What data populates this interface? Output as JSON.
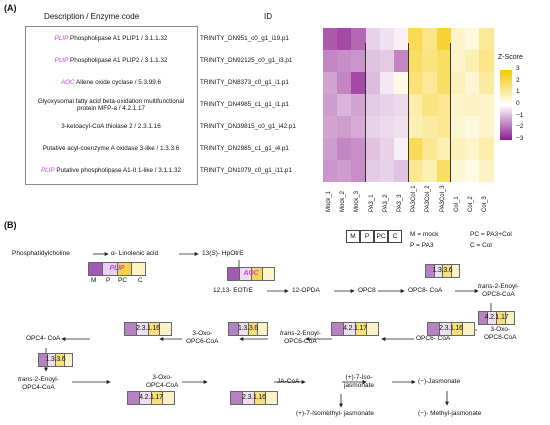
{
  "panel_a": {
    "label": "(A)",
    "desc_header": "Description / Enzyme code",
    "id_header": "ID",
    "rows": [
      {
        "tag": "PLIP",
        "desc": "Phospholipase A1 PLIP1 / 3.1.1.32",
        "id": "TRINITY_DN951_c0_g1_i19.p1",
        "values": [
          -2.2,
          -2.4,
          -2.0,
          -0.6,
          -0.4,
          -0.2,
          2.0,
          1.4,
          2.4,
          0.6,
          0.4,
          1.2
        ]
      },
      {
        "tag": "PLIP",
        "desc": "Phospholipase A1 PLIP2 / 3.1.1.32",
        "id": "TRINITY_DN92125_c0_g1_i3.p1",
        "values": [
          -1.6,
          -1.5,
          -1.4,
          -0.8,
          -0.7,
          -1.6,
          1.8,
          1.5,
          1.8,
          0.6,
          0.9,
          1.4
        ]
      },
      {
        "tag": "AOC",
        "desc": "Allene oxide cyclase / 5.3.99.6",
        "id": "TRINITY_DN8373_c0_g1_i1.p1",
        "values": [
          -1.2,
          -1.6,
          -2.4,
          -0.9,
          -0.3,
          0.3,
          1.6,
          1.2,
          1.8,
          0.8,
          0.5,
          1.1
        ]
      },
      {
        "tag": "",
        "desc": "Glyoxysomal fatty acid beta-oxidation multifunctional protein MFP-a / 4.2.1.17",
        "id": "TRINITY_DN4985_c1_g1_i1.p1",
        "values": [
          -1.3,
          -1.0,
          -1.2,
          -0.7,
          -0.6,
          -0.5,
          1.0,
          1.5,
          1.3,
          0.6,
          0.7,
          0.6
        ]
      },
      {
        "tag": "",
        "desc": "3-ketoacyl-CoA thiolase 2 / 2.3.1.16",
        "id": "TRINITY_DN39815_c0_g1_i42.p1",
        "values": [
          -1.2,
          -1.3,
          -1.1,
          -0.6,
          -0.5,
          -0.4,
          0.9,
          1.1,
          1.3,
          0.5,
          0.4,
          0.6
        ]
      },
      {
        "tag": "",
        "desc": "Putative acyl-coenzyme A oxidase 3-like / 1.3.3.6",
        "id": "TRINITY_DN2985_c1_g1_i4.p1",
        "values": [
          -1.3,
          -1.6,
          -1.5,
          -0.8,
          -0.6,
          -0.2,
          2.0,
          1.3,
          0.9,
          0.8,
          0.6,
          1.0
        ]
      },
      {
        "tag": "PLIP",
        "desc": "Putative phospholipase A1-II 1-like / 3.1.1.32",
        "id": "TRINITY_DN1079_c0_g1_i11.p1",
        "values": [
          -1.4,
          -1.3,
          -1.5,
          -0.7,
          -0.6,
          -0.8,
          1.3,
          0.9,
          1.8,
          0.5,
          0.3,
          0.7
        ]
      }
    ],
    "columns": [
      "Mock_1",
      "Mock_2",
      "Mock_3",
      "PA3_1",
      "PA3_2",
      "PA3_3",
      "PA3Col_1",
      "PA3Col_2",
      "PA3Col_3",
      "Col_1",
      "Col_2",
      "Col_3"
    ],
    "legend": {
      "title": "Z-Score",
      "ticks": [
        "3",
        "2",
        "1",
        "0",
        "−1",
        "−2",
        "−3"
      ],
      "range": [
        -3,
        3
      ]
    },
    "colors": {
      "low": "#8e1c8e",
      "mid": "#ffffff",
      "high": "#f5c800"
    }
  },
  "panel_b": {
    "label": "(B)",
    "key": {
      "cells": [
        "M",
        "P",
        "PC",
        "C"
      ],
      "line1": "M = mock",
      "line2": "P = PA3",
      "line3": "PC = PA3+Col",
      "line4": "C = Col"
    },
    "bar_col_labels": [
      "M",
      "P",
      "PC",
      "C"
    ],
    "metabolites": {
      "pc": "Phosphatidylcholine",
      "ala": "α- Linolenic acid",
      "hpotre_pre": "13(",
      "hpotre_it": "S",
      "hpotre_post": ")- HpOtrE",
      "eotre": "12,13- EOTrE",
      "opda": "12-OPDA",
      "opc8": "OPC8",
      "opc8coa": "OPC8- CoA",
      "tenoyl8_it": "trans",
      "tenoyl8_a": "-2-Enoyl-",
      "tenoyl8_b": "OPC8-CoA",
      "oxo8_a": "3-Oxo-",
      "oxo8_b": "OPC8-CoA",
      "opc6coa": "OPC6- CoA",
      "tenoyl6_it": "trans",
      "tenoyl6_a": "-2-Enoyl-",
      "tenoyl6_b": "OPC6-CoA",
      "oxo6_a": "3-Oxo-",
      "oxo6_b": "OPC6-CoA",
      "opc4coa": "OPC4- CoA",
      "tenoyl4_it": "trans",
      "tenoyl4_a": "-2-Enoyl-",
      "tenoyl4_b": "OPC4-CoA",
      "oxo4_a": "3-Oxo-",
      "oxo4_b": "OPC4-CoA",
      "jacoa": "JA-CoA",
      "isoja_a": "(+)-7-Iso-",
      "isoja_b": "jasmonate",
      "jasmonate": "(−)-Jasmonate",
      "isomethyl": "(+)-7-Isomethyl- jasmonate",
      "methyl": "(−)- Methyl-jasmonate"
    },
    "enzyme_bars": [
      {
        "label": "PLIP",
        "colors": [
          "#a05ab0",
          "#e8d3ee",
          "#f4d44a",
          "#fdf5c6"
        ]
      },
      {
        "label": "AOC",
        "colors": [
          "#a05ab0",
          "#ecdcf0",
          "#f5d754",
          "#fcf4cc"
        ]
      },
      {
        "label": "1.3.3.6",
        "colors": [
          "#b583c3",
          "#ecdff0",
          "#f7e07a",
          "#fbf1c8"
        ]
      },
      {
        "label": "4.2.1.17",
        "colors": [
          "#b583c3",
          "#ecdff0",
          "#f7e07a",
          "#fbf1c8"
        ]
      },
      {
        "label": "2.3.1.16",
        "colors": [
          "#b583c3",
          "#ecdff0",
          "#f7e07a",
          "#fbf1c8"
        ]
      },
      {
        "label": "4.2.1.17",
        "colors": [
          "#b583c3",
          "#ecdff0",
          "#f7e07a",
          "#fbf1c8"
        ]
      },
      {
        "label": "1.3.3.6",
        "colors": [
          "#b583c3",
          "#ecdff0",
          "#f7e07a",
          "#fbf1c8"
        ]
      },
      {
        "label": "2.3.1.16",
        "colors": [
          "#b583c3",
          "#ecdff0",
          "#f7e07a",
          "#fbf1c8"
        ]
      },
      {
        "label": "1.3.3.6",
        "colors": [
          "#b583c3",
          "#ecdff0",
          "#f7e07a",
          "#fbf1c8"
        ]
      },
      {
        "label": "4.2.1.17",
        "colors": [
          "#b583c3",
          "#ecdff0",
          "#f7e07a",
          "#fbf1c8"
        ]
      },
      {
        "label": "2.3.1.16",
        "colors": [
          "#b583c3",
          "#ecdff0",
          "#f7e07a",
          "#fbf1c8"
        ]
      }
    ]
  }
}
